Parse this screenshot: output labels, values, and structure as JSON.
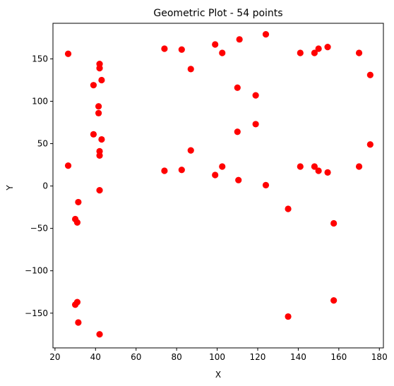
{
  "chart_data": {
    "type": "scatter",
    "title": "Geometric Plot - 54 points",
    "xlabel": "X",
    "ylabel": "Y",
    "xlim": [
      19,
      182
    ],
    "ylim": [
      -191,
      192
    ],
    "xticks": [
      20,
      40,
      60,
      80,
      100,
      120,
      140,
      160,
      180
    ],
    "yticks": [
      -150,
      -100,
      -50,
      0,
      50,
      100,
      150
    ],
    "grid": false,
    "legend": "none",
    "marker_color": "#ff0000",
    "series": [
      {
        "points": [
          [
            26.5,
            156
          ],
          [
            42,
            144
          ],
          [
            42,
            139
          ],
          [
            43,
            125
          ],
          [
            39,
            119
          ],
          [
            41.5,
            94
          ],
          [
            41.5,
            86
          ],
          [
            39,
            61
          ],
          [
            43,
            55
          ],
          [
            42,
            41
          ],
          [
            42,
            36
          ],
          [
            26.5,
            24
          ],
          [
            42,
            -5
          ],
          [
            31.5,
            -19
          ],
          [
            30,
            -39
          ],
          [
            31,
            -43
          ],
          [
            30,
            -140
          ],
          [
            31,
            -137
          ],
          [
            31.5,
            -161
          ],
          [
            42,
            -175
          ],
          [
            74,
            162
          ],
          [
            82.5,
            161
          ],
          [
            87,
            138
          ],
          [
            87,
            42
          ],
          [
            74,
            18
          ],
          [
            82.5,
            19
          ],
          [
            99,
            167
          ],
          [
            102.5,
            157
          ],
          [
            111,
            173
          ],
          [
            110,
            116
          ],
          [
            110,
            64
          ],
          [
            99,
            13
          ],
          [
            102.5,
            23
          ],
          [
            110.5,
            7
          ],
          [
            124,
            179
          ],
          [
            119,
            107
          ],
          [
            119,
            73
          ],
          [
            124,
            1
          ],
          [
            135,
            -27
          ],
          [
            135,
            -154
          ],
          [
            141,
            157
          ],
          [
            148,
            157
          ],
          [
            150,
            162
          ],
          [
            154.5,
            164
          ],
          [
            141,
            23
          ],
          [
            148,
            23
          ],
          [
            150,
            18
          ],
          [
            154.5,
            16
          ],
          [
            157.5,
            -44
          ],
          [
            157.5,
            -135
          ],
          [
            170,
            157
          ],
          [
            175.5,
            131
          ],
          [
            175.5,
            49
          ],
          [
            170,
            23
          ]
        ]
      }
    ]
  }
}
